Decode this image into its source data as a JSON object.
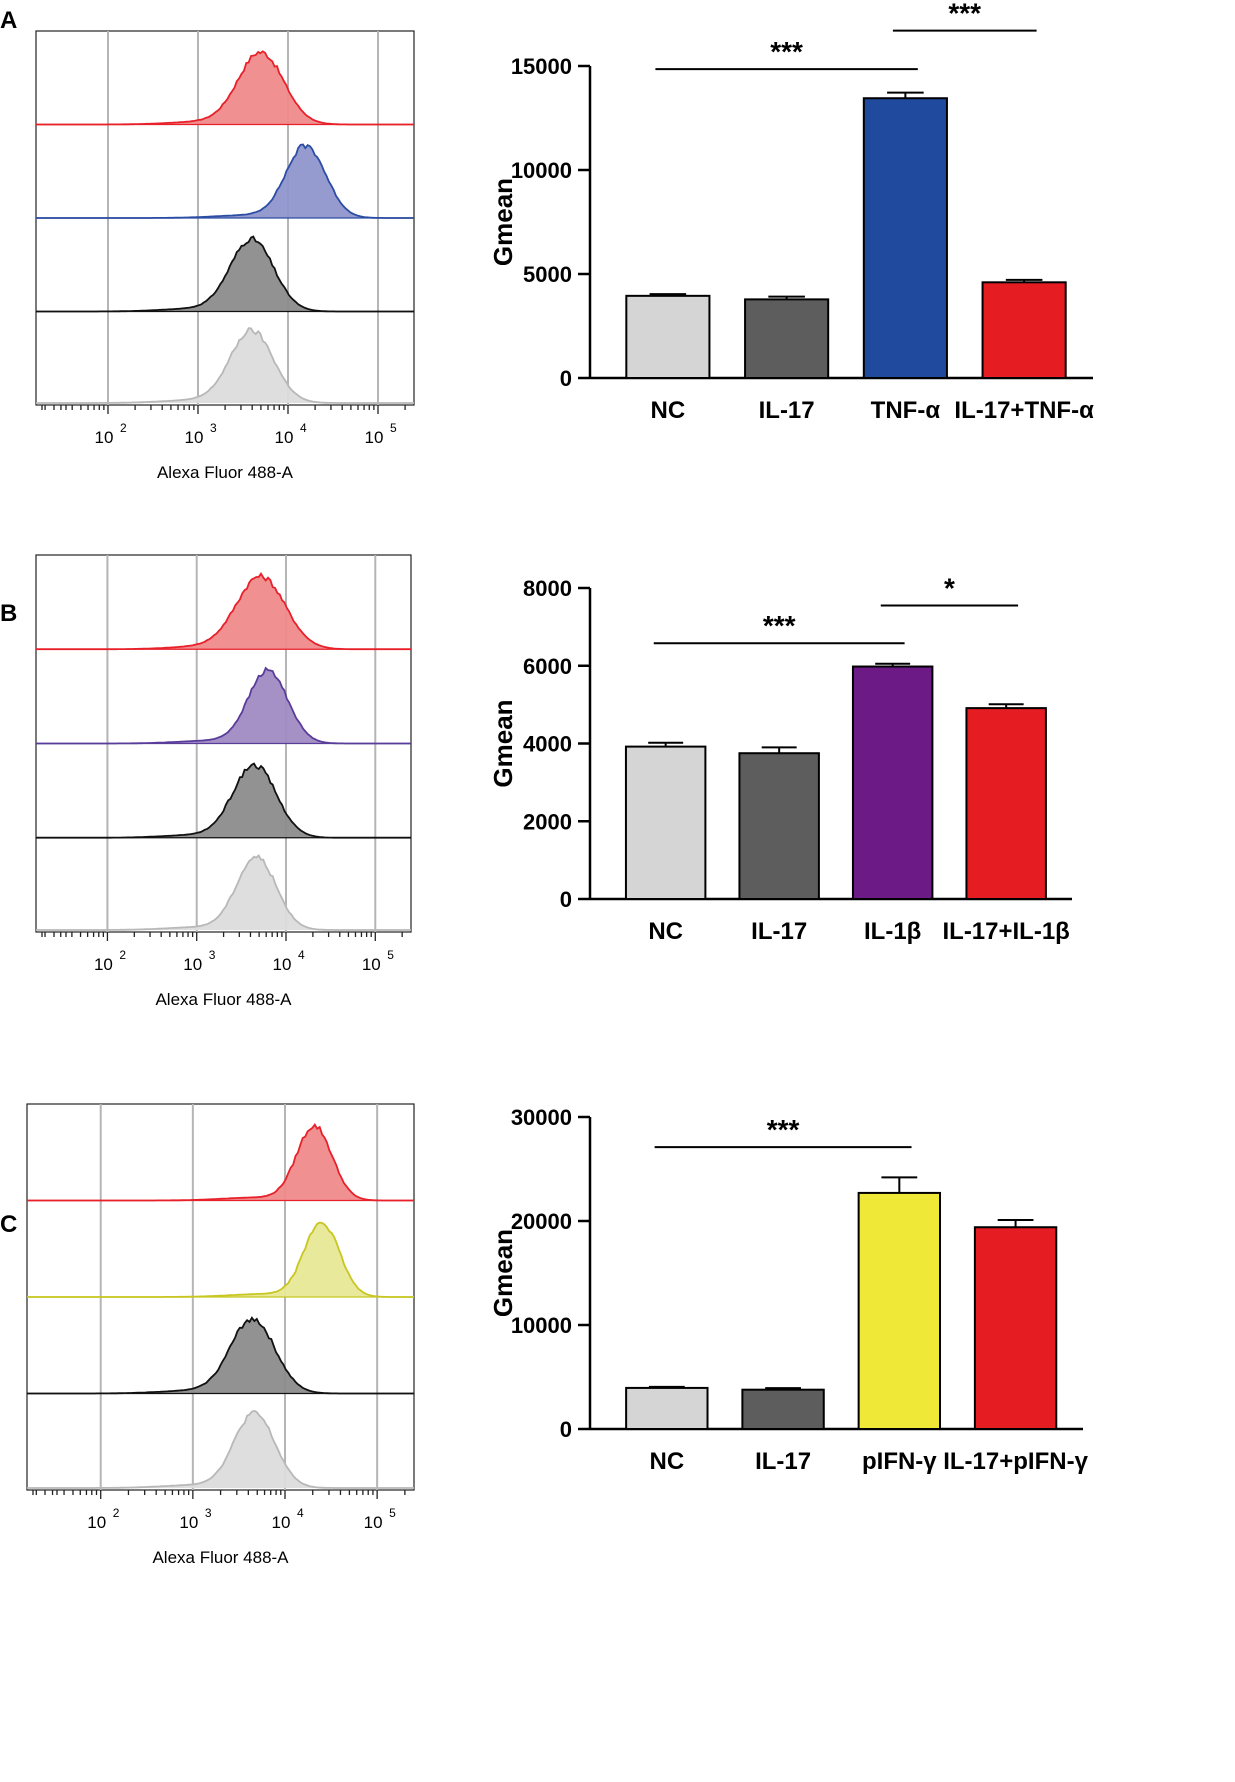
{
  "panels": [
    {
      "letter": "A",
      "flow": {
        "xlabel": "Alexa Fluor 488-A",
        "ticks": [
          {
            "base": "10",
            "exp": "2"
          },
          {
            "base": "10",
            "exp": "3"
          },
          {
            "base": "10",
            "exp": "4"
          },
          {
            "base": "10",
            "exp": "5"
          }
        ],
        "tracks": [
          {
            "label": "IL-17+TNF-α",
            "center": 3.7,
            "width": 0.25,
            "color": "#e8202a",
            "fill": "#f08a8a"
          },
          {
            "label": "TNF-α",
            "center": 4.2,
            "width": 0.22,
            "color": "#2b4da3",
            "fill": "#8f95cc"
          },
          {
            "label": "IL-17",
            "center": 3.6,
            "width": 0.24,
            "color": "#111111",
            "fill": "#8c8c8c"
          },
          {
            "label": "NC",
            "center": 3.6,
            "width": 0.24,
            "color": "#b8b8b8",
            "fill": "#dcdcdc"
          }
        ]
      },
      "chart_data": {
        "type": "bar",
        "ylabel": "Gmean",
        "ylim": [
          0,
          15000
        ],
        "yticks": [
          0,
          5000,
          10000,
          15000
        ],
        "ytick_labels": [
          "0",
          "5000",
          "10000",
          "15000"
        ],
        "categories": [
          "NC",
          "IL-17",
          "TNF-α",
          "IL-17+TNF-α"
        ],
        "values": [
          3950,
          3780,
          13450,
          4600
        ],
        "errors": [
          80,
          130,
          270,
          120
        ],
        "colors": [
          "#d4d5d4",
          "#5d5d5d",
          "#1f4a9e",
          "#e61c23"
        ],
        "significance": [
          {
            "from": 0,
            "to": 2,
            "label": "***",
            "value": 14850
          },
          {
            "from": 2,
            "to": 3,
            "label": "***",
            "value": 16700
          }
        ]
      }
    },
    {
      "letter": "B",
      "flow": {
        "xlabel": "Alexa Fluor 488-A",
        "ticks": [
          {
            "base": "10",
            "exp": "2"
          },
          {
            "base": "10",
            "exp": "3"
          },
          {
            "base": "10",
            "exp": "4"
          },
          {
            "base": "10",
            "exp": "5"
          }
        ],
        "tracks": [
          {
            "label": "IL-17+IL-1β",
            "center": 3.72,
            "width": 0.27,
            "color": "#e8202a",
            "fill": "#f08a8a"
          },
          {
            "label": "IL-1β",
            "center": 3.8,
            "width": 0.22,
            "color": "#5a3d9a",
            "fill": "#a18bc4"
          },
          {
            "label": "IL-17",
            "center": 3.65,
            "width": 0.24,
            "color": "#111111",
            "fill": "#8c8c8c"
          },
          {
            "label": "NC",
            "center": 3.67,
            "width": 0.22,
            "color": "#b8b8b8",
            "fill": "#dcdcdc"
          }
        ]
      },
      "chart_data": {
        "type": "bar",
        "ylabel": "Gmean",
        "ylim": [
          0,
          8000
        ],
        "yticks": [
          0,
          2000,
          4000,
          6000,
          8000
        ],
        "ytick_labels": [
          "0",
          "2000",
          "4000",
          "6000",
          "8000"
        ],
        "categories": [
          "NC",
          "IL-17",
          "IL-1β",
          "IL-17+IL-1β"
        ],
        "values": [
          3920,
          3750,
          5980,
          4910
        ],
        "errors": [
          100,
          150,
          70,
          100
        ],
        "colors": [
          "#d4d5d4",
          "#5d5d5d",
          "#6b1a86",
          "#e61c23"
        ],
        "significance": [
          {
            "from": 0,
            "to": 2,
            "label": "***",
            "value": 6580
          },
          {
            "from": 2,
            "to": 3,
            "label": "*",
            "value": 7550
          }
        ]
      }
    },
    {
      "letter": "C",
      "flow": {
        "xlabel": "Alexa Fluor 488-A",
        "ticks": [
          {
            "base": "10",
            "exp": "2"
          },
          {
            "base": "10",
            "exp": "3"
          },
          {
            "base": "10",
            "exp": "4"
          },
          {
            "base": "10",
            "exp": "5"
          }
        ],
        "tracks": [
          {
            "label": "IL-17+pIFN-γ",
            "center": 4.32,
            "width": 0.19,
            "color": "#e8202a",
            "fill": "#f08a8a"
          },
          {
            "label": "pIFN-γ",
            "center": 4.4,
            "width": 0.19,
            "color": "#c8c620",
            "fill": "#e8e896"
          },
          {
            "label": "IL-17",
            "center": 3.65,
            "width": 0.24,
            "color": "#111111",
            "fill": "#8c8c8c"
          },
          {
            "label": "NC",
            "center": 3.67,
            "width": 0.22,
            "color": "#b8b8b8",
            "fill": "#dcdcdc"
          }
        ]
      },
      "chart_data": {
        "type": "bar",
        "ylabel": "Gmean",
        "ylim": [
          0,
          30000
        ],
        "yticks": [
          0,
          10000,
          20000,
          30000
        ],
        "ytick_labels": [
          "0",
          "10000",
          "20000",
          "30000"
        ],
        "categories": [
          "NC",
          "IL-17",
          "pIFN-γ",
          "IL-17+pIFN-γ"
        ],
        "values": [
          3950,
          3780,
          22700,
          19400
        ],
        "errors": [
          100,
          150,
          1500,
          700
        ],
        "colors": [
          "#d4d5d4",
          "#5d5d5d",
          "#efe836",
          "#e61c23"
        ],
        "significance": [
          {
            "from": 0,
            "to": 2,
            "label": "***",
            "value": 27100
          }
        ]
      }
    }
  ]
}
